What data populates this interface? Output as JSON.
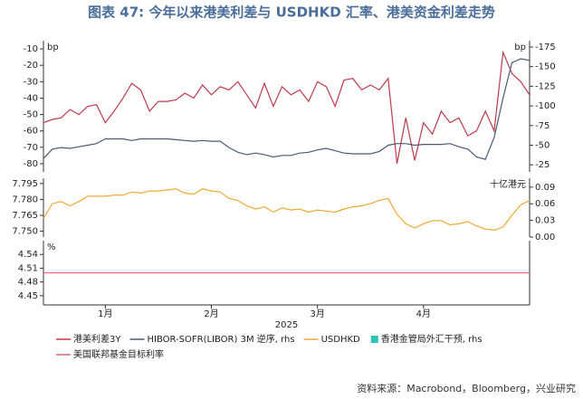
{
  "title": "图表 47: 今年以来港美利差与 USDHKD 汇率、港美资金利差走势",
  "source": "资料来源：Macrobond，Bloomberg，兴业研究",
  "chart_data": [
    {
      "type": "line",
      "y_unit": "bp",
      "y2_unit": "bp",
      "ylim": [
        -85,
        -5
      ],
      "yticks": [
        -10,
        -20,
        -30,
        -40,
        -50,
        -60,
        -70,
        -80
      ],
      "y2lim": [
        -16,
        -183
      ],
      "y2ticks": [
        -175,
        -150,
        -125,
        -100,
        -75,
        -50,
        -25
      ],
      "series": [
        {
          "name": "港美利差3Y",
          "color": "#c0394b",
          "values": [
            -55,
            -53,
            -52,
            -47,
            -50,
            -45,
            -44,
            -55,
            -48,
            -40,
            -31,
            -35,
            -48,
            -42,
            -42,
            -41,
            -37,
            -40,
            -32,
            -38,
            -33,
            -35,
            -30,
            -38,
            -46,
            -31,
            -45,
            -33,
            -38,
            -35,
            -42,
            -30,
            -33,
            -45,
            -29,
            -28,
            -35,
            -32,
            -35,
            -28,
            -80,
            -52,
            -78,
            -55,
            -62,
            -48,
            -55,
            -52,
            -63,
            -60,
            -48,
            -60,
            -12,
            -25,
            -30,
            -38
          ]
        },
        {
          "name": "HIBOR-SOFR(LIBOR) 3M 逆序, rhs",
          "color": "#4a5a7a",
          "axis": "y2",
          "values": [
            -33,
            -45,
            -47,
            -46,
            -48,
            -50,
            -52,
            -58,
            -58,
            -58,
            -56,
            -58,
            -58,
            -58,
            -58,
            -57,
            -56,
            -55,
            -56,
            -55,
            -55,
            -47,
            -41,
            -38,
            -40,
            -38,
            -35,
            -37,
            -37,
            -40,
            -41,
            -44,
            -46,
            -43,
            -40,
            -39,
            -39,
            -39,
            -42,
            -50,
            -52,
            -52,
            -50,
            -51,
            -51,
            -51,
            -52,
            -48,
            -45,
            -35,
            -32,
            -60,
            -110,
            -155,
            -160,
            -158
          ]
        }
      ]
    },
    {
      "type": "line",
      "y2_unit": "十亿港元",
      "ylim": [
        7.7445,
        7.8
      ],
      "yticks": [
        7.795,
        {
          "value": 7.78,
          "label": "7.780"
        },
        7.765,
        {
          "value": 7.75,
          "label": "7.750"
        }
      ],
      "y2lim": [
        0,
        0.106
      ],
      "y2ticks": [
        0.09,
        0.06,
        0.03,
        {
          "value": 0,
          "label": "0.00"
        }
      ],
      "series": [
        {
          "name": "USDHKD",
          "color": "#f0a830",
          "values": [
            7.762,
            7.776,
            7.778,
            7.774,
            7.778,
            7.783,
            7.783,
            7.783,
            7.784,
            7.784,
            7.787,
            7.786,
            7.788,
            7.788,
            7.789,
            7.79,
            7.786,
            7.785,
            7.79,
            7.788,
            7.787,
            7.781,
            7.779,
            7.774,
            7.771,
            7.773,
            7.768,
            7.772,
            7.77,
            7.771,
            7.768,
            7.77,
            7.769,
            7.768,
            7.771,
            7.773,
            7.774,
            7.776,
            7.779,
            7.781,
            7.766,
            7.757,
            7.753,
            7.757,
            7.76,
            7.76,
            7.756,
            7.757,
            7.759,
            7.755,
            7.752,
            7.751,
            7.754,
            7.765,
            7.775,
            7.779
          ]
        },
        {
          "name": "香港金管局外汇干预, rhs",
          "color": "#2ec4b6",
          "axis": "y2",
          "type": "bar",
          "values": [
            0,
            0,
            0,
            0,
            0,
            0,
            0,
            0,
            0,
            0,
            0,
            0,
            0,
            0,
            0,
            0,
            0,
            0,
            0,
            0,
            0,
            0,
            0,
            0,
            0,
            0,
            0,
            0,
            0,
            0,
            0,
            0,
            0,
            0,
            0,
            0,
            0,
            0,
            0,
            0,
            0,
            0,
            0,
            0,
            0,
            0,
            0,
            0,
            0,
            0,
            0,
            0,
            0,
            0,
            0,
            0
          ]
        }
      ]
    },
    {
      "type": "line",
      "y_unit": "%",
      "xlabel": "2025",
      "ylim": [
        4.43,
        4.57
      ],
      "yticks": [
        4.54,
        4.51,
        4.48,
        4.45
      ],
      "categories": [
        null,
        null,
        null,
        null,
        null,
        null,
        null,
        "1月",
        null,
        null,
        null,
        null,
        null,
        null,
        null,
        null,
        null,
        null,
        null,
        "2月",
        null,
        null,
        null,
        null,
        null,
        null,
        null,
        null,
        null,
        null,
        null,
        "3月",
        null,
        null,
        null,
        null,
        null,
        null,
        null,
        null,
        null,
        null,
        null,
        "4月",
        null,
        null,
        null,
        null,
        null,
        null,
        null,
        null,
        null,
        null,
        null,
        null
      ],
      "series": [
        {
          "name": "美国联邦基金目标利率",
          "color": "#e06878",
          "values": [
            4.5,
            4.5,
            4.5,
            4.5,
            4.5,
            4.5,
            4.5,
            4.5,
            4.5,
            4.5,
            4.5,
            4.5,
            4.5,
            4.5,
            4.5,
            4.5,
            4.5,
            4.5,
            4.5,
            4.5,
            4.5,
            4.5,
            4.5,
            4.5,
            4.5,
            4.5,
            4.5,
            4.5,
            4.5,
            4.5,
            4.5,
            4.5,
            4.5,
            4.5,
            4.5,
            4.5,
            4.5,
            4.5,
            4.5,
            4.5,
            4.5,
            4.5,
            4.5,
            4.5,
            4.5,
            4.5,
            4.5,
            4.5,
            4.5,
            4.5,
            4.5,
            4.5,
            4.5,
            4.5,
            4.5,
            4.5
          ]
        }
      ]
    }
  ]
}
